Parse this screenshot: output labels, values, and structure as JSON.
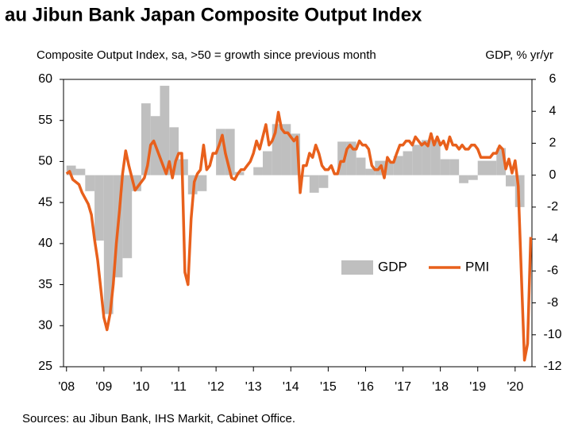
{
  "chart_data": {
    "type": "combo",
    "title": "au Jibun Bank Japan Composite Output Index",
    "y_label": "Composite Output Index, sa, >50 = growth since previous month",
    "y2_label": "GDP, % yr/yr",
    "source": "Sources: au Jibun Bank, IHS Markit, Cabinet Office.",
    "xlim": [
      2007.92,
      2020.45
    ],
    "xticks": [
      {
        "value": 2008,
        "label": "'08"
      },
      {
        "value": 2009,
        "label": "'09"
      },
      {
        "value": 2010,
        "label": "'10"
      },
      {
        "value": 2011,
        "label": "'11"
      },
      {
        "value": 2012,
        "label": "'12"
      },
      {
        "value": 2013,
        "label": "'13"
      },
      {
        "value": 2014,
        "label": "'14"
      },
      {
        "value": 2015,
        "label": "'15"
      },
      {
        "value": 2016,
        "label": "'16"
      },
      {
        "value": 2017,
        "label": "'17"
      },
      {
        "value": 2018,
        "label": "'18"
      },
      {
        "value": 2019,
        "label": "'19"
      },
      {
        "value": 2020,
        "label": "'20"
      }
    ],
    "ylim": [
      25,
      60
    ],
    "yticks": [
      25,
      30,
      35,
      40,
      45,
      50,
      55,
      60
    ],
    "y2lim": [
      -12,
      6
    ],
    "y2ticks": [
      -12,
      -10,
      -8,
      -6,
      -4,
      -2,
      0,
      2,
      4,
      6
    ],
    "legend": "lower-right",
    "series": [
      {
        "name": "GDP",
        "type": "bar",
        "axis": "y2",
        "color": "#bfbfbf",
        "x": [
          2008.125,
          2008.375,
          2008.625,
          2008.875,
          2009.125,
          2009.375,
          2009.625,
          2009.875,
          2010.125,
          2010.375,
          2010.625,
          2010.875,
          2011.125,
          2011.375,
          2011.625,
          2011.875,
          2012.125,
          2012.375,
          2012.625,
          2012.875,
          2013.125,
          2013.375,
          2013.625,
          2013.875,
          2014.125,
          2014.375,
          2014.625,
          2014.875,
          2015.125,
          2015.375,
          2015.625,
          2015.875,
          2016.125,
          2016.375,
          2016.625,
          2016.875,
          2017.125,
          2017.375,
          2017.625,
          2017.875,
          2018.125,
          2018.375,
          2018.625,
          2018.875,
          2019.125,
          2019.375,
          2019.625,
          2019.875,
          2020.125
        ],
        "values": [
          0.6,
          0.4,
          -1.0,
          -4.1,
          -8.7,
          -6.4,
          -5.2,
          -1.0,
          4.5,
          3.7,
          5.6,
          3.0,
          1.0,
          -1.2,
          -1.0,
          0.0,
          2.9,
          2.9,
          0.2,
          0.0,
          0.5,
          1.5,
          3.2,
          3.2,
          2.6,
          -0.1,
          -1.1,
          -0.8,
          0.0,
          2.1,
          2.1,
          1.1,
          0.4,
          0.9,
          0.9,
          1.2,
          1.5,
          1.9,
          2.2,
          2.2,
          1.0,
          1.0,
          -0.5,
          -0.3,
          0.9,
          0.9,
          1.7,
          -0.7,
          -2.0
        ]
      },
      {
        "name": "PMI",
        "type": "line",
        "axis": "y",
        "color": "#e8601c",
        "x": [
          2008,
          2008.083,
          2008.167,
          2008.25,
          2008.333,
          2008.417,
          2008.5,
          2008.583,
          2008.667,
          2008.75,
          2008.833,
          2008.917,
          2009,
          2009.083,
          2009.167,
          2009.25,
          2009.333,
          2009.417,
          2009.5,
          2009.583,
          2009.667,
          2009.75,
          2009.833,
          2009.917,
          2010,
          2010.083,
          2010.167,
          2010.25,
          2010.333,
          2010.417,
          2010.5,
          2010.583,
          2010.667,
          2010.75,
          2010.833,
          2010.917,
          2011,
          2011.083,
          2011.167,
          2011.25,
          2011.333,
          2011.417,
          2011.5,
          2011.583,
          2011.667,
          2011.75,
          2011.833,
          2011.917,
          2012,
          2012.083,
          2012.167,
          2012.25,
          2012.333,
          2012.417,
          2012.5,
          2012.583,
          2012.667,
          2012.75,
          2012.833,
          2012.917,
          2013,
          2013.083,
          2013.167,
          2013.25,
          2013.333,
          2013.417,
          2013.5,
          2013.583,
          2013.667,
          2013.75,
          2013.833,
          2013.917,
          2014,
          2014.083,
          2014.167,
          2014.25,
          2014.333,
          2014.417,
          2014.5,
          2014.583,
          2014.667,
          2014.75,
          2014.833,
          2014.917,
          2015,
          2015.083,
          2015.167,
          2015.25,
          2015.333,
          2015.417,
          2015.5,
          2015.583,
          2015.667,
          2015.75,
          2015.833,
          2015.917,
          2016,
          2016.083,
          2016.167,
          2016.25,
          2016.333,
          2016.417,
          2016.5,
          2016.583,
          2016.667,
          2016.75,
          2016.833,
          2016.917,
          2017,
          2017.083,
          2017.167,
          2017.25,
          2017.333,
          2017.417,
          2017.5,
          2017.583,
          2017.667,
          2017.75,
          2017.833,
          2017.917,
          2018,
          2018.083,
          2018.167,
          2018.25,
          2018.333,
          2018.417,
          2018.5,
          2018.583,
          2018.667,
          2018.75,
          2018.833,
          2018.917,
          2019,
          2019.083,
          2019.167,
          2019.25,
          2019.333,
          2019.417,
          2019.5,
          2019.583,
          2019.667,
          2019.75,
          2019.833,
          2019.917,
          2020,
          2020.083,
          2020.167,
          2020.25,
          2020.333,
          2020.417
        ],
        "values": [
          48.5,
          48.8,
          47.8,
          47.5,
          47.2,
          46.2,
          45.5,
          44.8,
          43.5,
          40.5,
          38.0,
          34.5,
          31.0,
          29.5,
          31.5,
          35.0,
          40.0,
          44.0,
          48.5,
          51.3,
          49.5,
          48.0,
          46.5,
          47.0,
          47.5,
          48.0,
          49.5,
          52.0,
          52.5,
          51.5,
          50.5,
          49.5,
          48.5,
          50.0,
          48.0,
          50.0,
          51.0,
          51.0,
          36.5,
          35.0,
          43.0,
          47.5,
          48.5,
          49.0,
          52.0,
          49.0,
          49.5,
          51.0,
          51.0,
          52.0,
          53.2,
          51.0,
          49.5,
          48.0,
          47.8,
          48.5,
          49.0,
          49.0,
          49.5,
          50.0,
          51.0,
          52.5,
          51.5,
          53.0,
          54.5,
          52.0,
          52.5,
          53.5,
          56.0,
          54.0,
          53.5,
          53.5,
          53.0,
          52.5,
          53.0,
          46.2,
          49.5,
          49.5,
          51.0,
          50.5,
          52.0,
          51.0,
          49.5,
          49.0,
          49.0,
          49.5,
          48.5,
          48.5,
          50.0,
          50.0,
          51.5,
          52.0,
          51.5,
          51.5,
          52.5,
          52.0,
          52.0,
          51.5,
          49.5,
          49.0,
          49.0,
          49.5,
          48.0,
          50.5,
          49.9,
          49.9,
          51.0,
          52.0,
          52.0,
          52.5,
          52.5,
          52.0,
          53.0,
          52.5,
          52.0,
          52.3,
          51.9,
          53.4,
          52.0,
          53.0,
          52.0,
          52.5,
          51.5,
          53.0,
          52.0,
          52.0,
          51.5,
          52.0,
          51.5,
          51.5,
          52.0,
          52.0,
          51.5,
          50.5,
          50.5,
          50.5,
          50.5,
          51.0,
          51.0,
          51.9,
          51.5,
          49.1,
          50.3,
          48.6,
          50.1,
          47.0,
          36.2,
          25.8,
          27.8,
          40.8
        ]
      }
    ]
  }
}
